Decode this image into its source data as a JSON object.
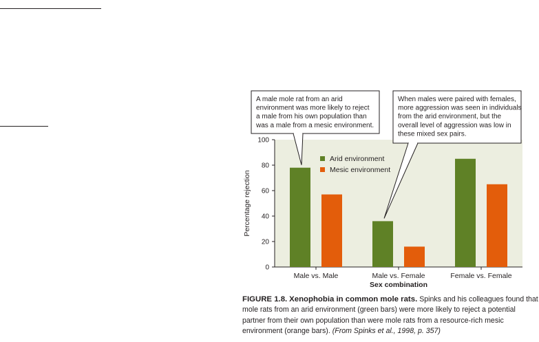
{
  "chart_data": {
    "type": "bar",
    "categories": [
      "Male vs. Male",
      "Male vs. Female",
      "Female vs. Female"
    ],
    "series": [
      {
        "name": "Arid environment",
        "color": "#5f8126",
        "values": [
          78,
          36,
          85
        ]
      },
      {
        "name": "Mesic environment",
        "color": "#e35d0b",
        "values": [
          57,
          16,
          65
        ]
      }
    ],
    "xlabel": "Sex combination",
    "ylabel": "Percentage rejection",
    "ylim": [
      0,
      100
    ],
    "yticks": [
      0,
      20,
      40,
      60,
      80,
      100
    ],
    "legend_position": "top-left",
    "plot_background": "#eceee0",
    "callouts": [
      {
        "target": "Male vs. Male / Arid environment",
        "lines": [
          "A male mole rat from an arid",
          "environment was more likely to reject",
          "a male from his own population than",
          "was a male from a mesic environment."
        ]
      },
      {
        "target": "Male vs. Female / Arid environment",
        "lines": [
          "When males were paired with females,",
          "more aggression was seen in individuals",
          "from the arid environment, but the",
          "overall level of aggression was low in",
          "these mixed sex pairs."
        ]
      }
    ]
  },
  "caption": {
    "figure_label": "FIGURE 1.8.",
    "title": "Xenophobia in common mole rats.",
    "body": "Spinks and his colleagues found that mole rats from an arid environment (green bars) were more likely to reject a potential partner from their own population than were mole rats from a resource-rich mesic environment (orange bars).",
    "citation": "(From Spinks et al., 1998, p. 357)"
  }
}
